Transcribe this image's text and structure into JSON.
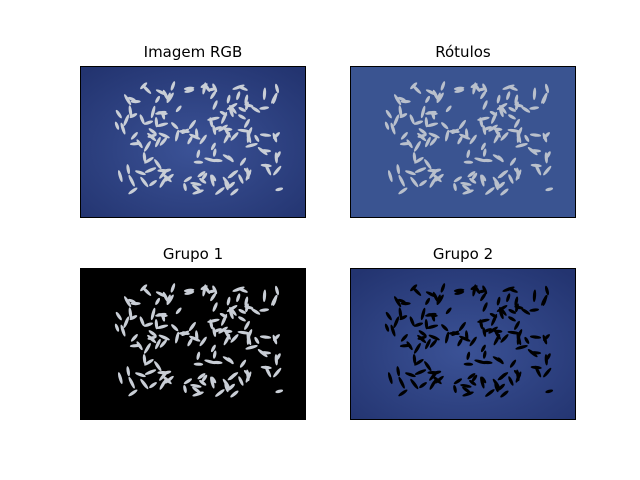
{
  "figure": {
    "panels": [
      {
        "id": "rgb",
        "title": "Imagem RGB",
        "content": "rice grains on blue background"
      },
      {
        "id": "labels",
        "title": "Rótulos",
        "content": "segmentation labels: grains light, background blue"
      },
      {
        "id": "group1",
        "title": "Grupo 1",
        "content": "rice grains on black background"
      },
      {
        "id": "group2",
        "title": "Grupo 2",
        "content": "blue background with black grain silhouettes"
      }
    ],
    "colors": {
      "background_blue": "#2b3f7f",
      "background_blue_light": "#3a4f92",
      "labels_blue": "#3a5491",
      "grain_light": "#c9ced6",
      "labels_grain": "#b9c0cc",
      "black": "#000000"
    }
  }
}
